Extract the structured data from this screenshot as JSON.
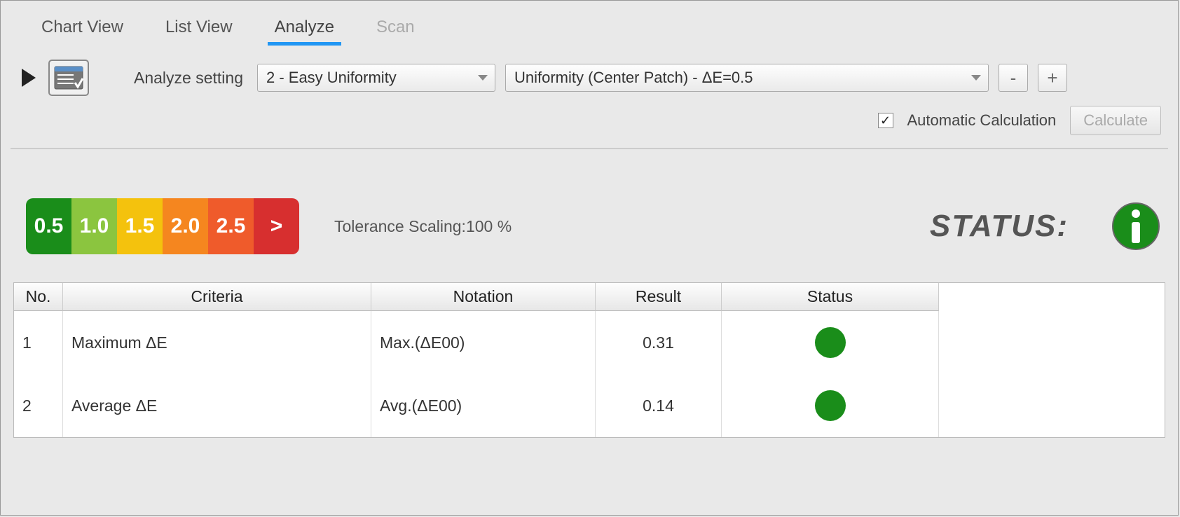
{
  "tabs": {
    "chart": "Chart View",
    "list": "List View",
    "analyze": "Analyze",
    "scan": "Scan",
    "active": "analyze",
    "scan_disabled": true
  },
  "toolbar": {
    "setting_label": "Analyze setting",
    "preset_selected": "2 - Easy Uniformity",
    "measure_selected": "Uniformity (Center Patch) - ΔE=0.5",
    "minus_label": "-",
    "plus_label": "+"
  },
  "auto": {
    "checked": true,
    "label": "Automatic Calculation",
    "calc_label": "Calculate"
  },
  "scale": {
    "segments": [
      {
        "label": "0.5",
        "color": "#1a8d1a"
      },
      {
        "label": "1.0",
        "color": "#8bc53f"
      },
      {
        "label": "1.5",
        "color": "#f4c20d"
      },
      {
        "label": "2.0",
        "color": "#f5861f"
      },
      {
        "label": "2.5",
        "color": "#ef5b2b"
      },
      {
        "label": ">",
        "color": "#d72f2f"
      }
    ],
    "tolerance_label": "Tolerance Scaling:",
    "tolerance_value": "100 %",
    "status_label": "STATUS:",
    "info_icon_color": "#1a8d1a"
  },
  "table": {
    "columns": [
      "No.",
      "Criteria",
      "Notation",
      "Result",
      "Status"
    ],
    "rows": [
      {
        "no": "1",
        "criteria": "Maximum ΔE",
        "notation": "Max.(ΔE00)",
        "result": "0.31",
        "status_color": "#1a8d1a"
      },
      {
        "no": "2",
        "criteria": "Average ΔE",
        "notation": "Avg.(ΔE00)",
        "result": "0.14",
        "status_color": "#1a8d1a"
      }
    ]
  }
}
